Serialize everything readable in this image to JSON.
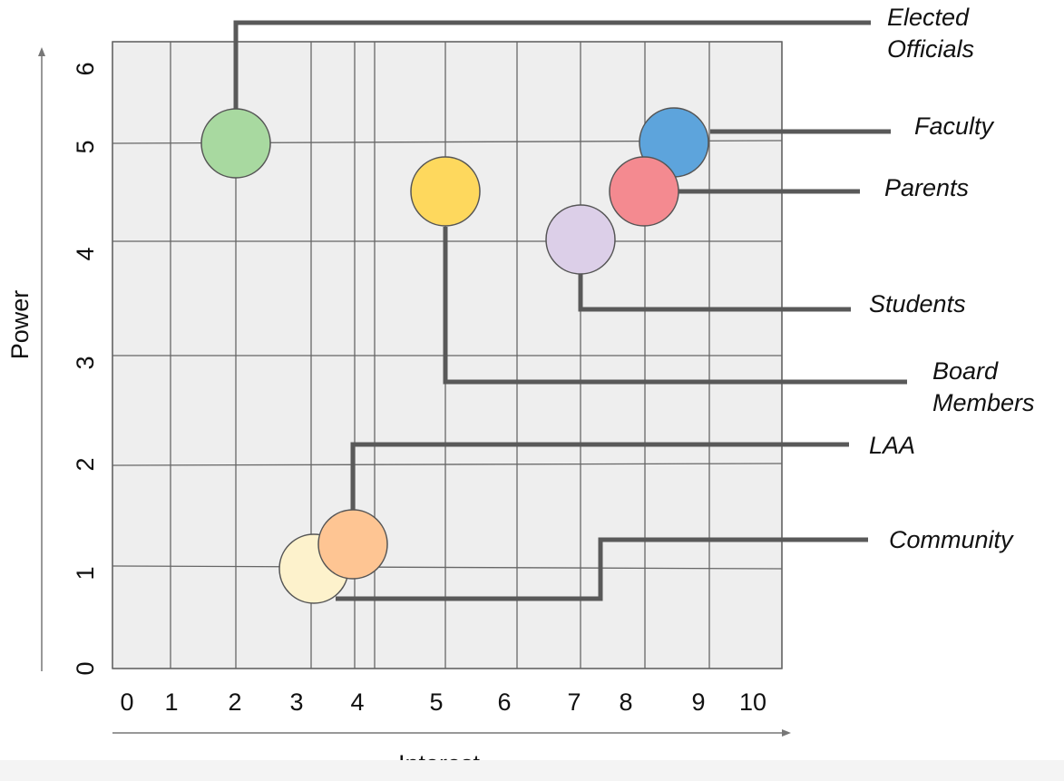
{
  "chart_data": {
    "type": "scatter",
    "title": "",
    "xlabel": "Interest",
    "ylabel": "Power",
    "x_ticks": [
      "0",
      "1",
      "2",
      "3",
      "4",
      "5",
      "6",
      "7",
      "8",
      "9",
      "10"
    ],
    "y_ticks": [
      "0",
      "1",
      "2",
      "3",
      "4",
      "5",
      "6"
    ],
    "grid": true,
    "plot_background": "#eeeeee",
    "gridline_color": "#666666",
    "callout_line_color": "#595959",
    "points": [
      {
        "label": [
          "Elected",
          "Officials"
        ],
        "x": 2,
        "y": 5,
        "color": "#a8d9a0"
      },
      {
        "label": [
          "Board",
          "Members"
        ],
        "x": 5,
        "y": 4.5,
        "color": "#fed85d"
      },
      {
        "label": [
          "Faculty"
        ],
        "x": 8.7,
        "y": 5,
        "color": "#5da4dc"
      },
      {
        "label": [
          "Parents"
        ],
        "x": 8.3,
        "y": 4.5,
        "color": "#f48a90"
      },
      {
        "label": [
          "Students"
        ],
        "x": 7,
        "y": 4,
        "color": "#dccfe8"
      },
      {
        "label": [
          "Community"
        ],
        "x": 3.2,
        "y": 1,
        "color": "#fdf2cc"
      },
      {
        "label": [
          "LAA"
        ],
        "x": 4,
        "y": 1.2,
        "color": "#fec593"
      }
    ]
  }
}
